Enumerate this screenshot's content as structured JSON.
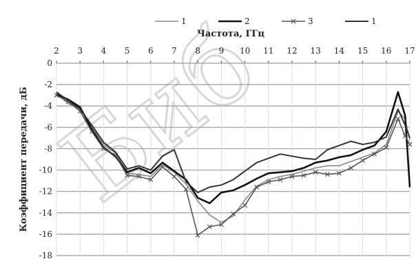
{
  "chart_data": {
    "type": "line",
    "xlabel": "Частота, ГГц",
    "ylabel": "Коэффициент передачи, дБ",
    "xlim": [
      2,
      17
    ],
    "ylim": [
      -18,
      0
    ],
    "x_ticks": [
      "2",
      "3",
      "4",
      "5",
      "6",
      "7",
      "8",
      "9",
      "10",
      "11",
      "12",
      "13",
      "14",
      "15",
      "16",
      "17"
    ],
    "y_ticks": [
      "0",
      "-2",
      "-4",
      "-6",
      "-8",
      "-10",
      "-12",
      "-14",
      "-16",
      "-18"
    ],
    "x_axis_position": "top",
    "grid": true,
    "legend_position": "top",
    "watermark": "Биб",
    "series": [
      {
        "name": "1",
        "color": "#888888",
        "marker": "none",
        "x": [
          2,
          2.5,
          3,
          3.5,
          4,
          4.5,
          5,
          5.5,
          6,
          6.5,
          7,
          7.5,
          8,
          8.5,
          9,
          9.5,
          10,
          10.5,
          11,
          11.5,
          12,
          12.5,
          13,
          13.5,
          14,
          14.5,
          15,
          15.5,
          16,
          16.5,
          16.8,
          17
        ],
        "y": [
          -2.8,
          -3.8,
          -4.2,
          -6,
          -7.6,
          -8.4,
          -10.3,
          -10.4,
          -10.6,
          -9.5,
          -10.2,
          -11.3,
          -12.9,
          -14.2,
          -14.9,
          -14.3,
          -12.8,
          -11.5,
          -10.9,
          -10.6,
          -10.4,
          -10.1,
          -9.8,
          -9.6,
          -9.6,
          -9.2,
          -8.8,
          -8.4,
          -7.6,
          -4.5,
          -5.2,
          -7.2
        ]
      },
      {
        "name": "2",
        "color": "#111111",
        "marker": "none",
        "x": [
          2,
          2.5,
          3,
          3.5,
          4,
          4.5,
          5,
          5.5,
          6,
          6.5,
          7,
          7.5,
          8,
          8.5,
          9,
          9.5,
          10,
          10.5,
          11,
          11.5,
          12,
          12.5,
          13,
          13.5,
          14,
          14.5,
          15,
          15.5,
          16,
          16.5,
          16.8,
          17
        ],
        "y": [
          -2.9,
          -3.4,
          -4.1,
          -6.2,
          -7.9,
          -8.7,
          -10.2,
          -9.8,
          -10.3,
          -9.3,
          -10.1,
          -10.9,
          -12.6,
          -13.1,
          -12.1,
          -11.9,
          -11.4,
          -10.8,
          -10.3,
          -10.2,
          -10.1,
          -9.8,
          -9.3,
          -9.1,
          -8.8,
          -8.6,
          -8.1,
          -7.7,
          -6.4,
          -2.7,
          -4.9,
          -11.6
        ]
      },
      {
        "name": "3",
        "color": "#555555",
        "marker": "x",
        "x": [
          2,
          2.5,
          3,
          3.5,
          4,
          4.5,
          5,
          5.5,
          6,
          6.5,
          7,
          7.5,
          8,
          8.5,
          9,
          9.5,
          10,
          10.5,
          11,
          11.5,
          12,
          12.5,
          13,
          13.5,
          14,
          14.5,
          15,
          15.5,
          16,
          16.5,
          16.8,
          17
        ],
        "y": [
          -3.0,
          -3.6,
          -4.5,
          -6.4,
          -8.0,
          -8.6,
          -10.5,
          -10.6,
          -10.9,
          -9.7,
          -10.6,
          -11.8,
          -16.1,
          -15.3,
          -15.1,
          -14.1,
          -13.3,
          -11.6,
          -11.1,
          -10.9,
          -10.6,
          -10.5,
          -10.2,
          -10.4,
          -10.3,
          -9.8,
          -9.1,
          -8.5,
          -7.9,
          -5.2,
          -6.8,
          -7.6
        ]
      },
      {
        "name": "1",
        "color": "#333333",
        "marker": "none",
        "x": [
          2,
          2.5,
          3,
          3.5,
          4,
          4.5,
          5,
          5.5,
          6,
          6.5,
          7,
          7.5,
          8,
          8.5,
          9,
          9.5,
          10,
          10.5,
          11,
          11.5,
          12,
          12.5,
          13,
          13.5,
          14,
          14.5,
          15,
          15.5,
          16,
          16.5,
          16.8,
          17
        ],
        "y": [
          -2.7,
          -3.5,
          -4.3,
          -5.8,
          -7.4,
          -8.3,
          -9.9,
          -9.6,
          -10.0,
          -8.7,
          -8.1,
          -11.1,
          -12.1,
          -11.6,
          -11.4,
          -10.9,
          -10.1,
          -9.3,
          -8.9,
          -8.5,
          -8.7,
          -8.9,
          -9.0,
          -8.1,
          -7.7,
          -7.3,
          -7.6,
          -7.4,
          -6.9,
          -4.3,
          -5.8,
          -7.0
        ]
      }
    ]
  }
}
